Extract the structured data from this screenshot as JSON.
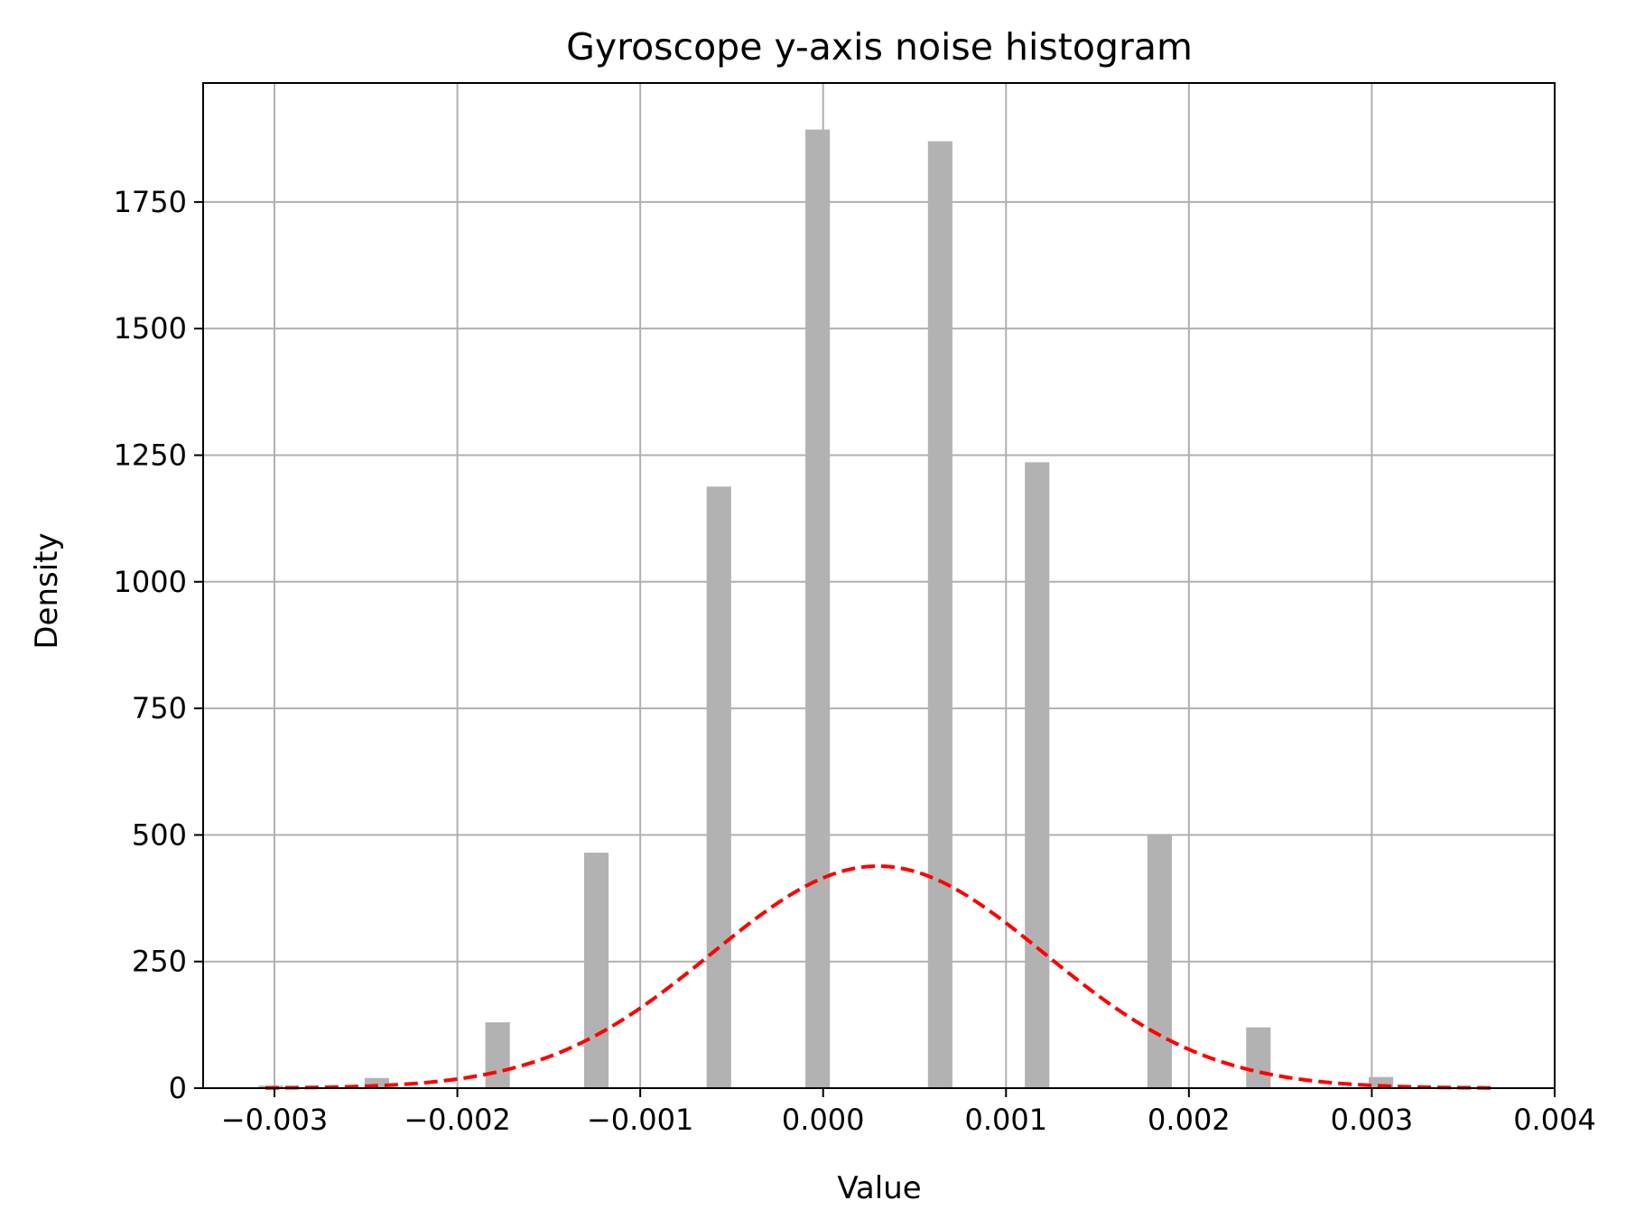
{
  "chart_data": {
    "type": "bar",
    "title": "Gyroscope y-axis noise histogram",
    "xlabel": "Value",
    "ylabel": "Density",
    "xlim": [
      -0.00339,
      0.004
    ],
    "ylim": [
      0,
      1985
    ],
    "grid": true,
    "x_ticks": [
      -0.003,
      -0.002,
      -0.001,
      0.0,
      0.001,
      0.002,
      0.003,
      0.004
    ],
    "x_tick_labels": [
      "−0.003",
      "−0.002",
      "−0.001",
      "0.000",
      "0.001",
      "0.002",
      "0.003",
      "0.004"
    ],
    "y_ticks": [
      0,
      250,
      500,
      750,
      1000,
      1250,
      1500,
      1750
    ],
    "y_tick_labels": [
      "0",
      "250",
      "500",
      "750",
      "1000",
      "1250",
      "1500",
      "1750"
    ],
    "bar_color": "#b2b2b2",
    "bar_width": 0.000134,
    "bars": [
      {
        "x": -0.00302,
        "value": 5
      },
      {
        "x": -0.00244,
        "value": 20
      },
      {
        "x": -0.00178,
        "value": 130
      },
      {
        "x": -0.00124,
        "value": 465
      },
      {
        "x": -0.00057,
        "value": 1188
      },
      {
        "x": -3e-05,
        "value": 1893
      },
      {
        "x": 0.00064,
        "value": 1870
      },
      {
        "x": 0.00117,
        "value": 1236
      },
      {
        "x": 0.00184,
        "value": 500
      },
      {
        "x": 0.00238,
        "value": 120
      },
      {
        "x": 0.00305,
        "value": 22
      }
    ],
    "fit_curve": {
      "type": "normal_pdf",
      "mean": 0.0003,
      "std": 0.00091,
      "x_range": [
        -0.00305,
        0.00365
      ],
      "color": "#ff0000",
      "style": "dashed"
    }
  }
}
